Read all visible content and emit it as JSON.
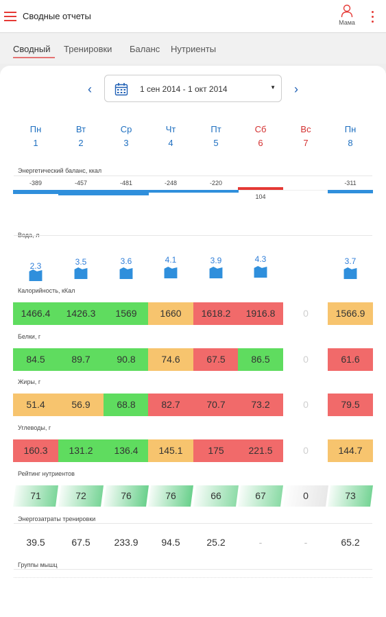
{
  "app": {
    "title": "Сводные отчеты",
    "user_label": "Мама"
  },
  "tabs": [
    {
      "label": "Сводный"
    },
    {
      "label": "Тренировки"
    },
    {
      "label": "Баланс"
    },
    {
      "label": "Нутриенты"
    }
  ],
  "date_range": {
    "value": "1 сен 2014 - 1 окт 2014"
  },
  "days": [
    {
      "name": "Пн",
      "num": "1",
      "weekend": false
    },
    {
      "name": "Вт",
      "num": "2",
      "weekend": false
    },
    {
      "name": "Ср",
      "num": "3",
      "weekend": false
    },
    {
      "name": "Чт",
      "num": "4",
      "weekend": false
    },
    {
      "name": "Пт",
      "num": "5",
      "weekend": false
    },
    {
      "name": "Сб",
      "num": "6",
      "weekend": true
    },
    {
      "name": "Вс",
      "num": "7",
      "weekend": true
    },
    {
      "name": "Пн",
      "num": "8",
      "weekend": false
    }
  ],
  "energy_balance": {
    "label": "Энергетический баланс, ккал",
    "values": [
      "-389",
      "-457",
      "-481",
      "-248",
      "-220",
      "104",
      null,
      "-311"
    ],
    "numeric": [
      -389,
      -457,
      -481,
      -248,
      -220,
      104,
      null,
      -311
    ],
    "colors": {
      "negative": "#2f8fdc",
      "positive": "#e53935"
    }
  },
  "water": {
    "label": "Вода, л",
    "values": [
      "2.3",
      "3.5",
      "3.6",
      "4.1",
      "3.9",
      "4.3",
      null,
      "3.7"
    ],
    "numeric": [
      2.3,
      3.5,
      3.6,
      4.1,
      3.9,
      4.3,
      null,
      3.7
    ]
  },
  "calories": {
    "label": "Калорийность, кКал",
    "values": [
      "1466.4",
      "1426.3",
      "1569",
      "1660",
      "1618.2",
      "1916.8",
      "0",
      "1566.9"
    ],
    "status": [
      "g",
      "g",
      "g",
      "o",
      "r",
      "r",
      "z",
      "o"
    ]
  },
  "proteins": {
    "label": "Белки, г",
    "values": [
      "84.5",
      "89.7",
      "90.8",
      "74.6",
      "67.5",
      "86.5",
      "0",
      "61.6"
    ],
    "status": [
      "g",
      "g",
      "g",
      "o",
      "r",
      "g",
      "z",
      "r"
    ]
  },
  "fats": {
    "label": "Жиры, г",
    "values": [
      "51.4",
      "56.9",
      "68.8",
      "82.7",
      "70.7",
      "73.2",
      "0",
      "79.5"
    ],
    "status": [
      "o",
      "o",
      "g",
      "r",
      "r",
      "r",
      "z",
      "r"
    ]
  },
  "carbs": {
    "label": "Углеводы, г",
    "values": [
      "160.3",
      "131.2",
      "136.4",
      "145.1",
      "175",
      "221.5",
      "0",
      "144.7"
    ],
    "status": [
      "r",
      "g",
      "g",
      "o",
      "r",
      "r",
      "z",
      "o"
    ]
  },
  "nutrient_rating": {
    "label": "Рейтинг нутриентов",
    "values": [
      "71",
      "72",
      "76",
      "76",
      "66",
      "67",
      "0",
      "73"
    ],
    "numeric": [
      71,
      72,
      76,
      76,
      66,
      67,
      0,
      73
    ],
    "color": "#5fd38a"
  },
  "training_energy": {
    "label": "Энергозатраты тренировки",
    "values": [
      "39.5",
      "67.5",
      "233.9",
      "94.5",
      "25.2",
      "-",
      "-",
      "65.2"
    ]
  },
  "muscle_groups": {
    "label": "Группы мышц"
  }
}
